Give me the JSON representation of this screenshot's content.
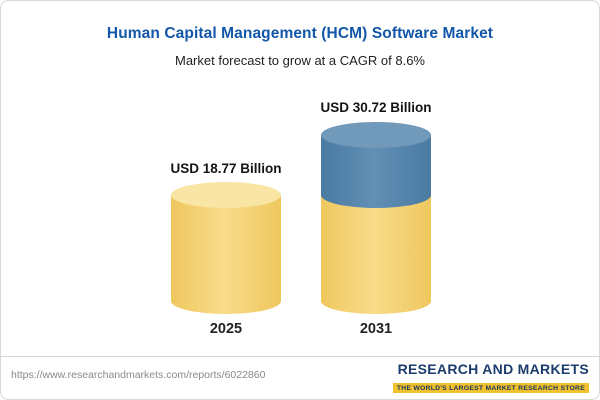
{
  "chart_data": {
    "type": "bar",
    "title": "Human Capital Management (HCM) Software Market",
    "subtitle": "Market forecast to grow at a CAGR of 8.6%",
    "categories": [
      "2025",
      "2031"
    ],
    "values": [
      18.77,
      30.72
    ],
    "value_labels": [
      "USD 18.77 Billion",
      "USD 30.72 Billion"
    ],
    "unit": "USD Billion",
    "cagr": "8.6%",
    "legend": "none",
    "grid": false,
    "colors": {
      "base_segment": "#F5D36E",
      "growth_segment": "#4E80A8",
      "title_text": "#1257A8"
    }
  },
  "footer": {
    "url": "https://www.researchandmarkets.com/reports/6022860",
    "logo_text": "RESEARCH AND MARKETS",
    "tagline": "THE WORLD'S LARGEST MARKET RESEARCH STORE"
  }
}
